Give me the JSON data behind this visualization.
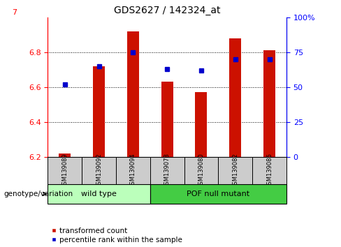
{
  "title": "GDS2627 / 142324_at",
  "samples": [
    "GSM139089",
    "GSM139092",
    "GSM139094",
    "GSM139078",
    "GSM139080",
    "GSM139082",
    "GSM139086"
  ],
  "red_values": [
    6.22,
    6.72,
    6.92,
    6.63,
    6.57,
    6.88,
    6.81
  ],
  "blue_values": [
    52,
    65,
    75,
    63,
    62,
    70,
    70
  ],
  "y_min": 6.2,
  "y_max": 7.0,
  "y_ticks": [
    6.2,
    6.4,
    6.6,
    6.8
  ],
  "y_tick_labels": [
    "6.2",
    "6.4",
    "6.6",
    "6.8"
  ],
  "y_top_label": "7",
  "right_y_ticks": [
    0,
    25,
    50,
    75,
    100
  ],
  "right_y_labels": [
    "0",
    "25",
    "50",
    "75",
    "100%"
  ],
  "bar_bottom": 6.2,
  "bar_color": "#cc1100",
  "blue_color": "#0000cc",
  "wild_type_label": "wild type",
  "mutant_label": "POF null mutant",
  "legend_red": "transformed count",
  "legend_blue": "percentile rank within the sample",
  "genotype_label": "genotype/variation",
  "wild_type_color": "#bbffbb",
  "mutant_color": "#44cc44",
  "sample_box_color": "#cccccc",
  "n_wild": 3,
  "n_mutant": 4
}
